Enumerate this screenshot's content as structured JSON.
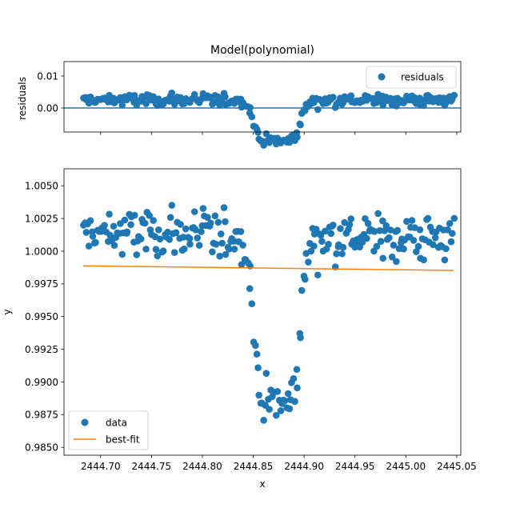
{
  "chart_data": [
    {
      "type": "scatter",
      "title": "Model(polynomial)",
      "xlabel": "",
      "ylabel": "residuals",
      "xlim": [
        2444.664,
        2445.054
      ],
      "ylim": [
        -0.0075,
        0.0145
      ],
      "yticks": [
        0.0,
        0.01
      ],
      "ytick_labels": [
        "0.00",
        "0.01"
      ],
      "xticks": [
        2444.7,
        2444.75,
        2444.8,
        2444.85,
        2444.9,
        2444.95,
        2445.0,
        2445.05
      ],
      "legend": {
        "placement": "upper-right",
        "entries": [
          "residuals"
        ]
      },
      "grid": false,
      "colors": {
        "residuals": "#1f77b4",
        "zero_line": "#1f77b4"
      },
      "hline": 0.0,
      "series": [
        {
          "name": "residuals",
          "x": [],
          "y": []
        }
      ]
    },
    {
      "type": "scatter",
      "title": "",
      "xlabel": "x",
      "ylabel": "y",
      "xlim": [
        2444.664,
        2445.054
      ],
      "ylim": [
        0.9844,
        1.0063
      ],
      "yticks": [
        0.985,
        0.9875,
        0.99,
        0.9925,
        0.995,
        0.9975,
        1.0,
        1.0025,
        1.005
      ],
      "ytick_labels": [
        "0.9850",
        "0.9875",
        "0.9900",
        "0.9925",
        "0.9950",
        "0.9975",
        "1.0000",
        "1.0025",
        "1.0050"
      ],
      "xticks": [
        2444.7,
        2444.75,
        2444.8,
        2444.85,
        2444.9,
        2444.95,
        2445.0,
        2445.05
      ],
      "xtick_labels": [
        "2444.70",
        "2444.75",
        "2444.80",
        "2444.85",
        "2444.90",
        "2444.95",
        "2445.00",
        "2445.05"
      ],
      "legend": {
        "placement": "lower-left",
        "entries": [
          "data",
          "best-fit"
        ]
      },
      "grid": false,
      "colors": {
        "data": "#1f77b4",
        "best-fit": "#ff7f0e"
      },
      "series": [
        {
          "name": "data",
          "x": [],
          "y": []
        },
        {
          "name": "best-fit",
          "type": "line",
          "x": [
            2444.683,
            2445.047
          ],
          "y": [
            0.99888,
            0.99853
          ]
        }
      ]
    }
  ]
}
